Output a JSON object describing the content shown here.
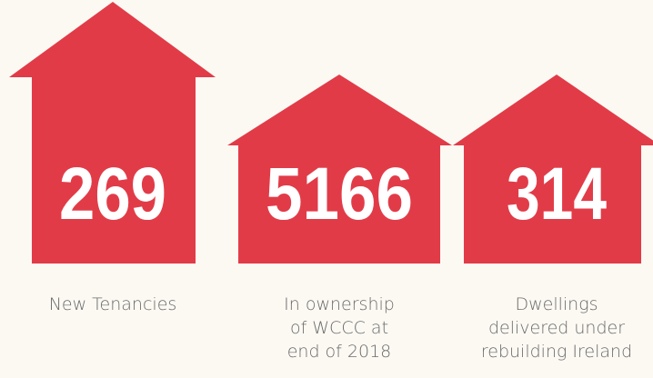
{
  "items": [
    {
      "number": 269,
      "label": [
        "New Tenancies"
      ]
    },
    {
      "number": 5166,
      "label": [
        "In ownership",
        "of WCCC at",
        "end of 2018"
      ]
    },
    {
      "number": 314,
      "label": [
        "Dwellings",
        "delivered under",
        "rebuilding Ireland"
      ]
    }
  ]
}
